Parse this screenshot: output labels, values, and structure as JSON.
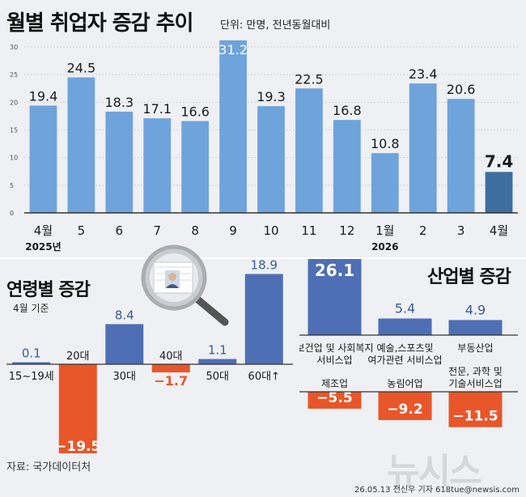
{
  "header": {
    "title": "월별 취업자 증감 추이",
    "unit": "단위: 만명, 전년동월대비"
  },
  "chart_data": [
    {
      "type": "bar",
      "title": "월별 취업자 증감 추이",
      "categories": [
        "4월",
        "5",
        "6",
        "7",
        "8",
        "9",
        "10",
        "11",
        "12",
        "1월",
        "2",
        "3",
        "4월"
      ],
      "year_labels": [
        "2025년",
        "2026"
      ],
      "values": [
        19.4,
        24.5,
        18.3,
        17.1,
        16.6,
        31.2,
        19.3,
        22.5,
        16.8,
        10.8,
        23.4,
        20.6,
        7.4
      ],
      "value_labels": [
        "19.4",
        "24.5",
        "18.3",
        "17.1",
        "16.6",
        "31.2",
        "19.3",
        "22.5",
        "16.8",
        "10.8",
        "23.4",
        "20.6",
        "7.4"
      ],
      "ylim": [
        0,
        30
      ],
      "yticks": [
        0,
        5,
        10,
        15,
        20,
        25,
        30
      ],
      "grid": true,
      "colors": {
        "bar": "#6fa3dc",
        "highlight": "#3d6e9f"
      }
    },
    {
      "type": "bar",
      "title": "연령별 증감",
      "subtitle": "4월 기준",
      "categories": [
        "15~19세",
        "20대",
        "30대",
        "40대",
        "50대",
        "60대↑"
      ],
      "values": [
        0.1,
        -19.5,
        8.4,
        -1.7,
        1.1,
        18.9
      ],
      "value_labels": [
        "0.1",
        "−19.5",
        "8.4",
        "−1.7",
        "1.1",
        "18.9"
      ],
      "colors": {
        "positive": "#4f6fb4",
        "negative": "#e8562a"
      }
    },
    {
      "type": "bar",
      "title": "산업별 증감",
      "categories": [
        "보건업 및 사회복지 서비스업",
        "예술,스포츠및 여가관련 서비스업",
        "부동산업",
        "제조업",
        "농림어업",
        "전문, 과학 및 기술서비스업"
      ],
      "positive_labels": [
        [
          "보건업 및 사회복지",
          "서비스업"
        ],
        [
          "예술,스포츠및",
          "여가관련 서비스업"
        ],
        [
          "부동산업"
        ]
      ],
      "negative_labels": [
        [
          "제조업"
        ],
        [
          "농림어업"
        ],
        [
          "전문, 과학 및",
          "기술서비스업"
        ]
      ],
      "values": [
        26.1,
        5.4,
        4.9,
        -5.5,
        -9.2,
        -11.5
      ],
      "value_labels": [
        "26.1",
        "5.4",
        "4.9",
        "−5.5",
        "−9.2",
        "−11.5"
      ],
      "colors": {
        "positive": "#4f6fb4",
        "negative": "#e8562a"
      }
    }
  ],
  "footer": {
    "source": "자료: 국가데이터처",
    "credit": "26.05.13  전신우 기자  618tue@newsis.com",
    "watermark": "뉴시스"
  }
}
